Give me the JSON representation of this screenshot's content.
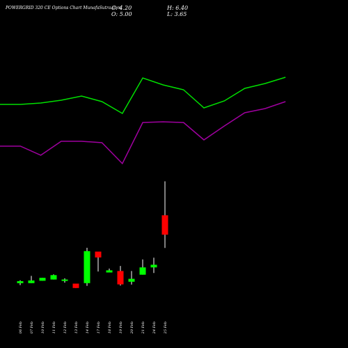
{
  "header": {
    "title": "POWERGRID 320  CE Options  Chart MunafaSutra.com",
    "close": "C: 4.20",
    "open": "O: 5.00",
    "high": "H: 6.40",
    "low": "L: 3.65"
  },
  "colors": {
    "background": "#000000",
    "bullish": "#00ff00",
    "bearish": "#ff0000",
    "upper_line": "#00e000",
    "lower_line": "#a000a0",
    "wick": "#ffffff",
    "text": "#ffffff"
  },
  "chart_data": {
    "type": "candlestick",
    "categories": [
      "06 Feb",
      "07 Feb",
      "10 Feb",
      "11 Feb",
      "12 Feb",
      "13 Feb",
      "14 Feb",
      "17 Feb",
      "18 Feb",
      "19 Feb",
      "20 Feb",
      "21 Feb",
      "24 Feb",
      "25 Feb"
    ],
    "candles": [
      {
        "open": 2.2,
        "high": 2.32,
        "low": 2.12,
        "close": 2.28
      },
      {
        "open": 2.2,
        "high": 2.5,
        "low": 2.2,
        "close": 2.31
      },
      {
        "open": 2.3,
        "high": 2.42,
        "low": 2.3,
        "close": 2.42
      },
      {
        "open": 2.35,
        "high": 2.56,
        "low": 2.35,
        "close": 2.53
      },
      {
        "open": 2.32,
        "high": 2.4,
        "low": 2.22,
        "close": 2.35
      },
      {
        "open": 2.18,
        "high": 2.18,
        "low": 2.0,
        "close": 2.0
      },
      {
        "open": 2.2,
        "high": 3.66,
        "low": 2.09,
        "close": 3.52
      },
      {
        "open": 3.5,
        "high": 3.5,
        "low": 2.68,
        "close": 3.26
      },
      {
        "open": 2.64,
        "high": 2.8,
        "low": 2.64,
        "close": 2.73
      },
      {
        "open": 2.7,
        "high": 2.91,
        "low": 2.1,
        "close": 2.15
      },
      {
        "open": 2.26,
        "high": 2.7,
        "low": 2.14,
        "close": 2.38
      },
      {
        "open": 2.55,
        "high": 3.18,
        "low": 2.55,
        "close": 2.85
      },
      {
        "open": 2.85,
        "high": 3.25,
        "low": 2.62,
        "close": 2.96
      },
      {
        "open": 5.0,
        "high": 6.4,
        "low": 3.65,
        "close": 4.2
      }
    ],
    "upper_band": [
      150,
      150,
      148,
      144,
      138,
      146,
      163,
      112,
      122,
      129,
      155,
      145,
      127,
      120,
      111
    ],
    "lower_band": [
      210,
      210,
      223,
      203,
      203,
      205,
      235,
      176,
      175,
      176,
      201,
      181,
      162,
      156,
      146
    ]
  }
}
